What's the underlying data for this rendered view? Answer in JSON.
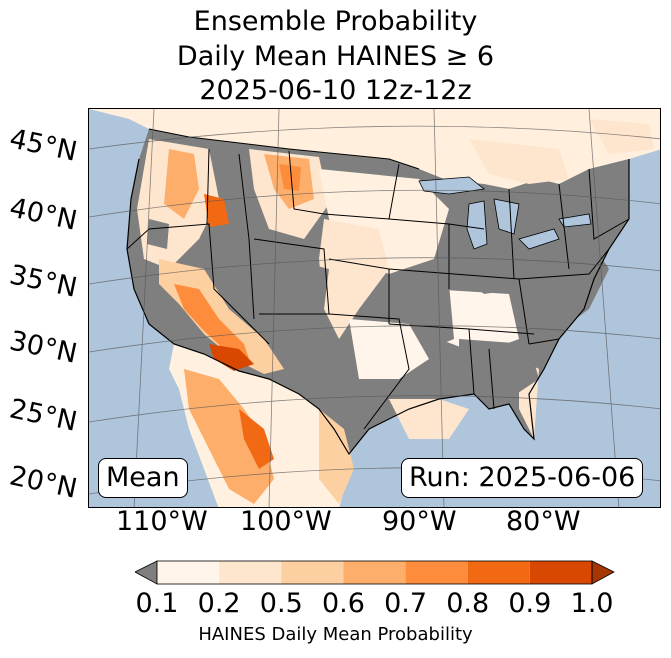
{
  "title": {
    "line1": "Ensemble Probability",
    "line2": "Daily Mean HAINES ≥ 6",
    "line3": "2025-06-10 12z-12z"
  },
  "map": {
    "lat_labels": [
      "45°N",
      "40°N",
      "35°N",
      "30°N",
      "25°N",
      "20°N"
    ],
    "lon_labels": [
      "110°W",
      "100°W",
      "90°W",
      "80°W"
    ],
    "ocean_color": "#aec5dc",
    "land_masked_color": "#7f7f7f",
    "badge_left": "Mean",
    "badge_right": "Run: 2025-06-06"
  },
  "colorbar": {
    "ticks": [
      "0.1",
      "0.2",
      "0.5",
      "0.6",
      "0.7",
      "0.8",
      "0.9",
      "1.0"
    ],
    "colors": [
      "#fff5eb",
      "#fee6ce",
      "#fdd0a2",
      "#fdae6b",
      "#fd8d3c",
      "#f16913",
      "#d94801",
      "#a63603"
    ],
    "under_color": "#7f7f7f",
    "label": "HAINES Daily Mean Probability"
  }
}
